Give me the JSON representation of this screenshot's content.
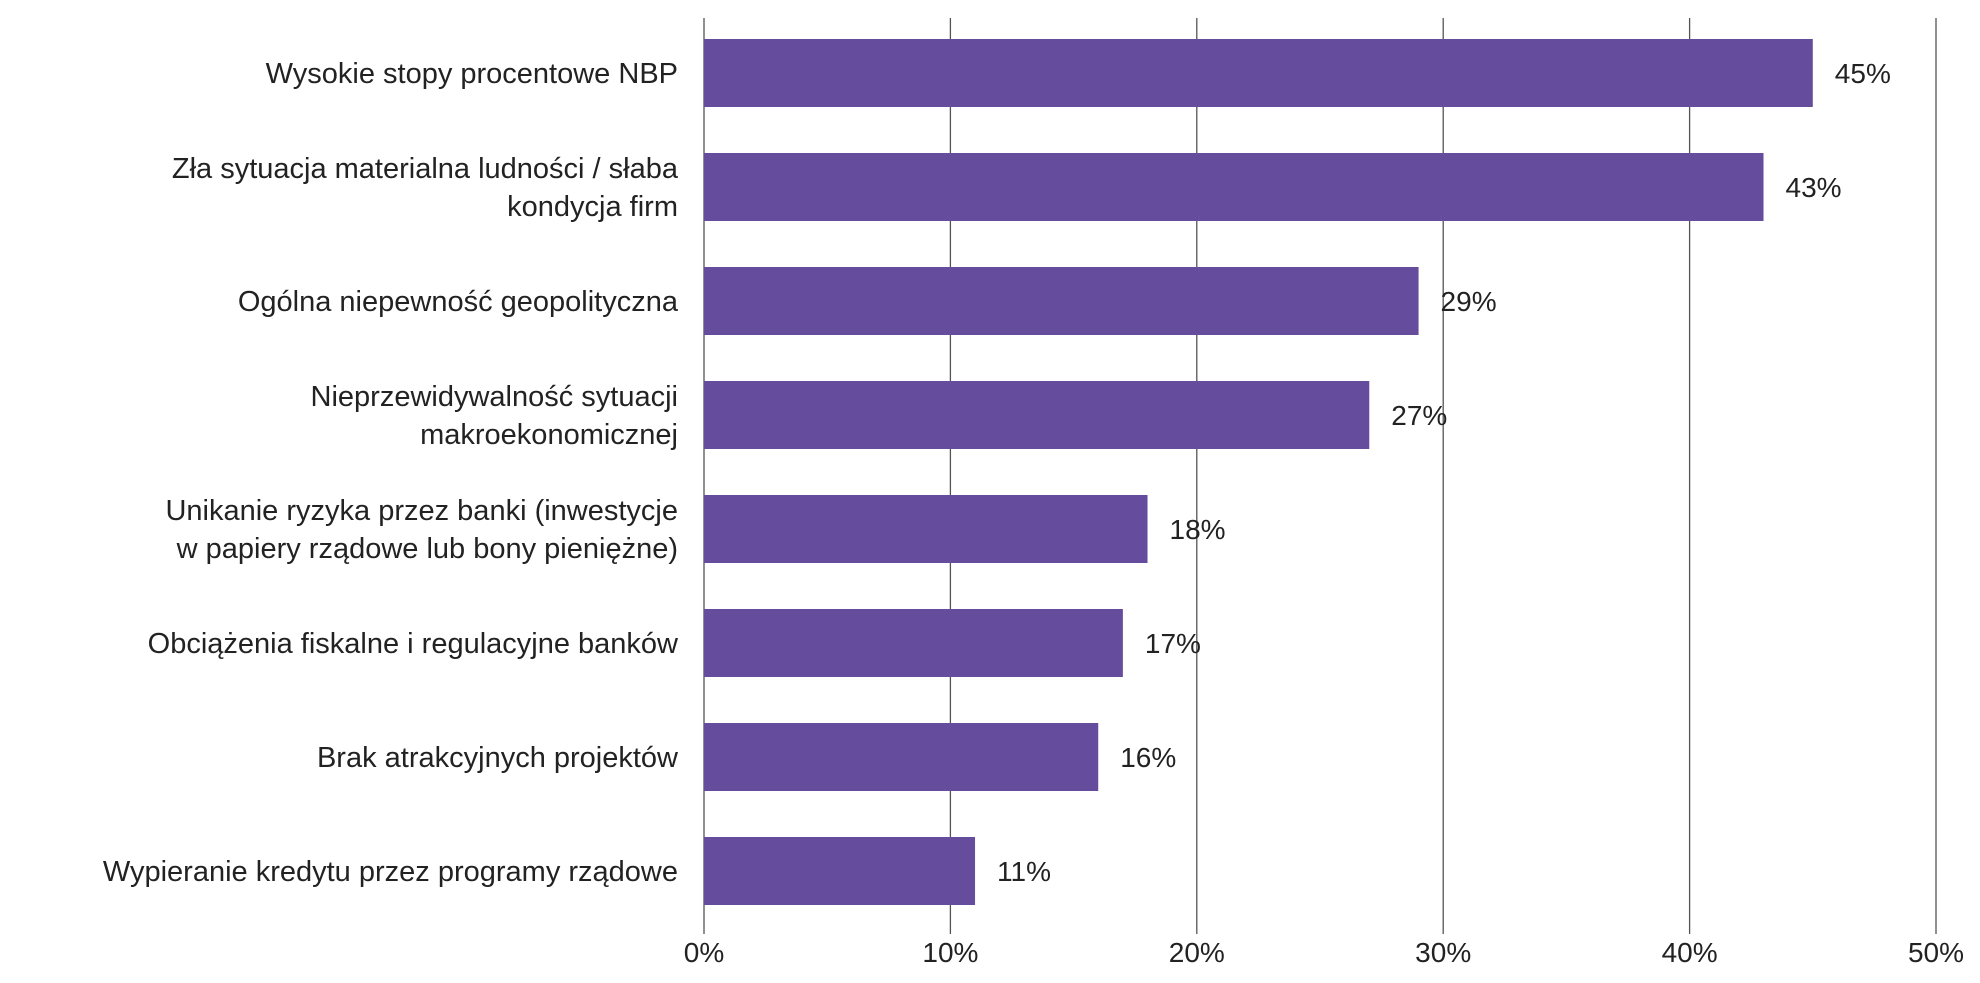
{
  "chart_data": {
    "type": "bar",
    "orientation": "horizontal",
    "categories": [
      [
        "Wysokie stopy procentowe NBP"
      ],
      [
        "Zła sytuacja materialna ludności / słaba",
        "kondycja firm"
      ],
      [
        "Ogólna niepewność geopolityczna"
      ],
      [
        "Nieprzewidywalność sytuacji",
        "makroekonomicznej"
      ],
      [
        "Unikanie ryzyka przez banki (inwestycje",
        "w papiery rządowe lub bony pieniężne)"
      ],
      [
        "Obciążenia fiskalne i regulacyjne banków"
      ],
      [
        "Brak atrakcyjnych projektów"
      ],
      [
        "Wypieranie kredytu przez programy rządowe"
      ]
    ],
    "values": [
      45,
      43,
      29,
      27,
      18,
      17,
      16,
      11
    ],
    "value_labels": [
      "45%",
      "43%",
      "29%",
      "27%",
      "18%",
      "17%",
      "16%",
      "11%"
    ],
    "xlim": [
      0,
      50
    ],
    "x_ticks": [
      0,
      10,
      20,
      30,
      40,
      50
    ],
    "x_tick_labels": [
      "0%",
      "10%",
      "20%",
      "30%",
      "40%",
      "50%"
    ],
    "grid": true,
    "legend": "none",
    "colors": {
      "bar": "#654c9c",
      "grid": "#555555",
      "text": "#222222"
    }
  }
}
